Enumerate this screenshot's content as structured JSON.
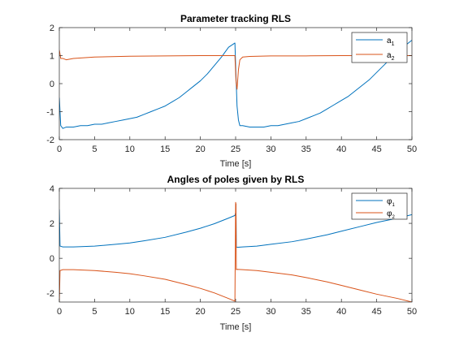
{
  "chart_data": [
    {
      "type": "line",
      "title": "Parameter tracking RLS",
      "xlabel": "Time [s]",
      "ylabel": "",
      "xlim": [
        0,
        50
      ],
      "ylim": [
        -2,
        2
      ],
      "xticks": [
        0,
        5,
        10,
        15,
        20,
        25,
        30,
        35,
        40,
        45,
        50
      ],
      "yticks": [
        -2,
        -1,
        0,
        1,
        2
      ],
      "legend_position": "top-right",
      "series": [
        {
          "name": "a1",
          "name_base": "a",
          "name_sub": "1",
          "color": "#0072BD",
          "x": [
            0,
            0.2,
            0.5,
            1,
            2,
            3,
            4,
            5,
            6,
            7,
            8,
            9,
            10,
            11,
            12,
            13,
            14,
            15,
            16,
            17,
            18,
            19,
            20,
            21,
            22,
            23,
            24,
            24.9,
            25.05,
            25.2,
            25.4,
            25.6,
            26,
            27,
            28,
            29,
            30,
            31,
            32,
            33,
            34,
            35,
            36,
            37,
            38,
            39,
            40,
            41,
            42,
            43,
            44,
            45,
            46,
            47,
            48,
            49,
            50
          ],
          "y": [
            -0.5,
            -1.5,
            -1.6,
            -1.55,
            -1.55,
            -1.5,
            -1.5,
            -1.45,
            -1.45,
            -1.4,
            -1.35,
            -1.3,
            -1.25,
            -1.2,
            -1.1,
            -1.0,
            -0.9,
            -0.8,
            -0.65,
            -0.5,
            -0.3,
            -0.1,
            0.1,
            0.35,
            0.65,
            0.95,
            1.3,
            1.45,
            0.3,
            -0.8,
            -1.3,
            -1.5,
            -1.5,
            -1.55,
            -1.55,
            -1.55,
            -1.5,
            -1.5,
            -1.45,
            -1.4,
            -1.35,
            -1.25,
            -1.15,
            -1.05,
            -0.9,
            -0.75,
            -0.6,
            -0.45,
            -0.25,
            -0.05,
            0.15,
            0.4,
            0.65,
            0.9,
            1.15,
            1.35,
            1.55
          ]
        },
        {
          "name": "a2",
          "name_base": "a",
          "name_sub": "2",
          "color": "#D95319",
          "x": [
            0,
            0.2,
            0.5,
            1,
            2,
            5,
            10,
            15,
            20,
            24.9,
            25.05,
            25.2,
            25.4,
            25.6,
            26,
            27,
            30,
            35,
            40,
            45,
            50
          ],
          "y": [
            1.2,
            0.9,
            0.9,
            0.85,
            0.9,
            0.95,
            0.98,
            0.99,
            1.0,
            1.0,
            0.1,
            -0.2,
            0.5,
            0.85,
            0.95,
            0.97,
            0.99,
            0.99,
            1.0,
            1.0,
            1.0
          ]
        }
      ]
    },
    {
      "type": "line",
      "title": "Angles of poles given by RLS",
      "xlabel": "Time [s]",
      "ylabel": "",
      "xlim": [
        0,
        50
      ],
      "ylim": [
        -2.5,
        4
      ],
      "xticks": [
        0,
        5,
        10,
        15,
        20,
        25,
        30,
        35,
        40,
        45,
        50
      ],
      "yticks": [
        -2,
        0,
        2,
        4
      ],
      "legend_position": "top-right",
      "series": [
        {
          "name": "φ1",
          "name_base": "φ",
          "name_sub": "1",
          "color": "#0072BD",
          "x": [
            0,
            0.1,
            0.5,
            2,
            5,
            8,
            10,
            12,
            15,
            18,
            20,
            22,
            24,
            24.9,
            25.0,
            25.05,
            25.1,
            25.2,
            26,
            28,
            30,
            33,
            35,
            38,
            40,
            43,
            45,
            48,
            50
          ],
          "y": [
            2.8,
            0.7,
            0.65,
            0.65,
            0.7,
            0.8,
            0.88,
            1.0,
            1.2,
            1.5,
            1.72,
            1.98,
            2.3,
            2.45,
            2.6,
            3.1,
            0.65,
            0.63,
            0.65,
            0.7,
            0.8,
            0.95,
            1.1,
            1.35,
            1.55,
            1.85,
            2.05,
            2.3,
            2.5
          ]
        },
        {
          "name": "φ2",
          "name_base": "φ",
          "name_sub": "2",
          "color": "#D95319",
          "x": [
            0,
            0.1,
            0.5,
            2,
            5,
            8,
            10,
            12,
            15,
            18,
            20,
            22,
            24,
            24.9,
            25.0,
            25.05,
            25.1,
            25.2,
            26,
            28,
            30,
            33,
            35,
            38,
            40,
            43,
            45,
            48,
            50
          ],
          "y": [
            -2.5,
            -0.7,
            -0.65,
            -0.65,
            -0.7,
            -0.8,
            -0.88,
            -1.0,
            -1.2,
            -1.5,
            -1.72,
            -1.98,
            -2.3,
            -2.45,
            3.2,
            3.1,
            -0.65,
            -0.63,
            -0.65,
            -0.7,
            -0.8,
            -0.95,
            -1.1,
            -1.35,
            -1.55,
            -1.85,
            -2.05,
            -2.3,
            -2.5
          ]
        }
      ]
    }
  ]
}
